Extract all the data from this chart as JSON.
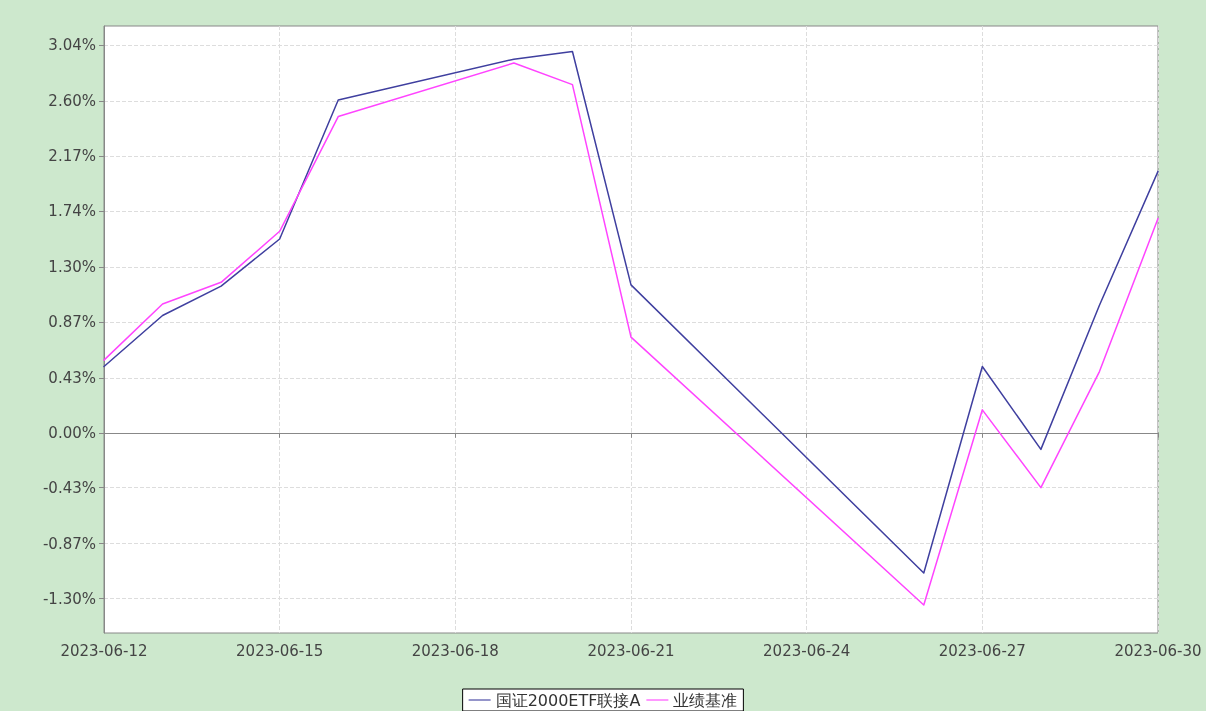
{
  "chart_data": {
    "type": "line",
    "x": [
      "2023-06-12",
      "2023-06-13",
      "2023-06-14",
      "2023-06-15",
      "2023-06-16",
      "2023-06-19",
      "2023-06-20",
      "2023-06-21",
      "2023-06-26",
      "2023-06-27",
      "2023-06-28",
      "2023-06-29",
      "2023-06-30"
    ],
    "series": [
      {
        "name": "国证2000ETF联接A",
        "color": "#3f3f9f",
        "values": [
          0.52,
          0.92,
          1.15,
          1.52,
          2.61,
          2.93,
          2.99,
          1.16,
          -1.1,
          0.52,
          -0.13,
          1.0,
          2.05
        ]
      },
      {
        "name": "业绩基准",
        "color": "#ff44ff",
        "values": [
          0.57,
          1.01,
          1.18,
          1.58,
          2.48,
          2.9,
          2.73,
          0.75,
          -1.35,
          0.18,
          -0.43,
          0.48,
          1.68
        ]
      }
    ],
    "xlim": [
      "2023-06-12",
      "2023-06-30"
    ],
    "xticks": [
      "2023-06-12",
      "2023-06-15",
      "2023-06-18",
      "2023-06-21",
      "2023-06-24",
      "2023-06-27",
      "2023-06-30"
    ],
    "ylim": [
      -1.57,
      3.19
    ],
    "yticks": [
      {
        "value": -1.3,
        "label": "-1.30%"
      },
      {
        "value": -0.87,
        "label": "-0.87%"
      },
      {
        "value": -0.43,
        "label": "-0.43%"
      },
      {
        "value": 0,
        "label": "0.00%"
      },
      {
        "value": 0.43,
        "label": "0.43%"
      },
      {
        "value": 0.87,
        "label": "0.87%"
      },
      {
        "value": 1.3,
        "label": "1.30%"
      },
      {
        "value": 1.74,
        "label": "1.74%"
      },
      {
        "value": 2.17,
        "label": "2.17%"
      },
      {
        "value": 2.6,
        "label": "2.60%"
      },
      {
        "value": 3.04,
        "label": "3.04%"
      }
    ],
    "grid": true,
    "legend": "bottom",
    "marker": "none",
    "line_style": "solid"
  }
}
